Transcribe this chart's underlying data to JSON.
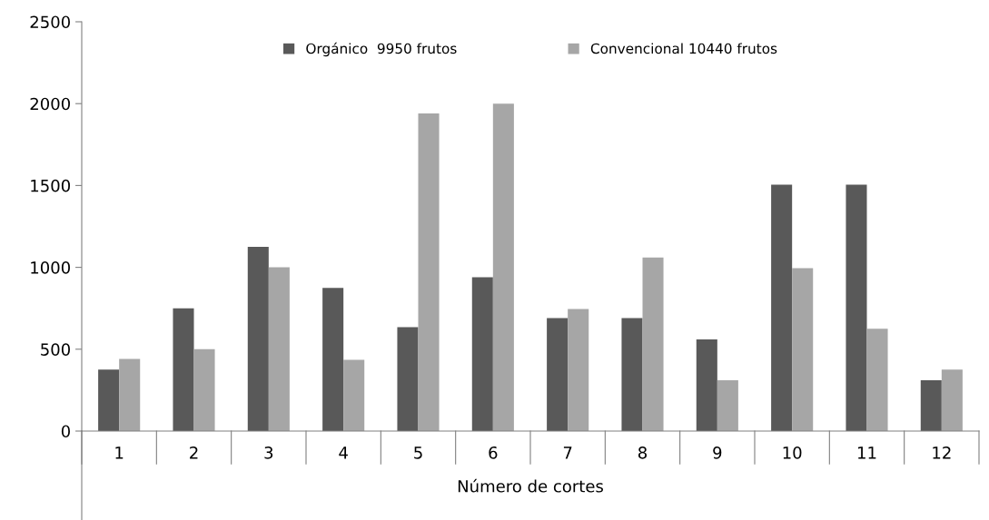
{
  "chart_data": {
    "type": "bar",
    "xlabel": "Número de cortes",
    "categories": [
      "1",
      "2",
      "3",
      "4",
      "5",
      "6",
      "7",
      "8",
      "9",
      "10",
      "11",
      "12"
    ],
    "series": [
      {
        "name": "Orgánico  9950 frutos",
        "color": "#595959",
        "values": [
          375,
          750,
          1125,
          875,
          635,
          940,
          690,
          690,
          560,
          1505,
          1505,
          310
        ]
      },
      {
        "name": "Convencional 10440 frutos",
        "color": "#a6a6a6",
        "values": [
          440,
          500,
          1000,
          435,
          1940,
          2000,
          745,
          1060,
          310,
          995,
          625,
          375
        ]
      }
    ],
    "ylim": [
      0,
      2500
    ],
    "yticks": [
      0,
      500,
      1000,
      1500,
      2000,
      2500
    ],
    "grid": false,
    "legend": "top"
  }
}
